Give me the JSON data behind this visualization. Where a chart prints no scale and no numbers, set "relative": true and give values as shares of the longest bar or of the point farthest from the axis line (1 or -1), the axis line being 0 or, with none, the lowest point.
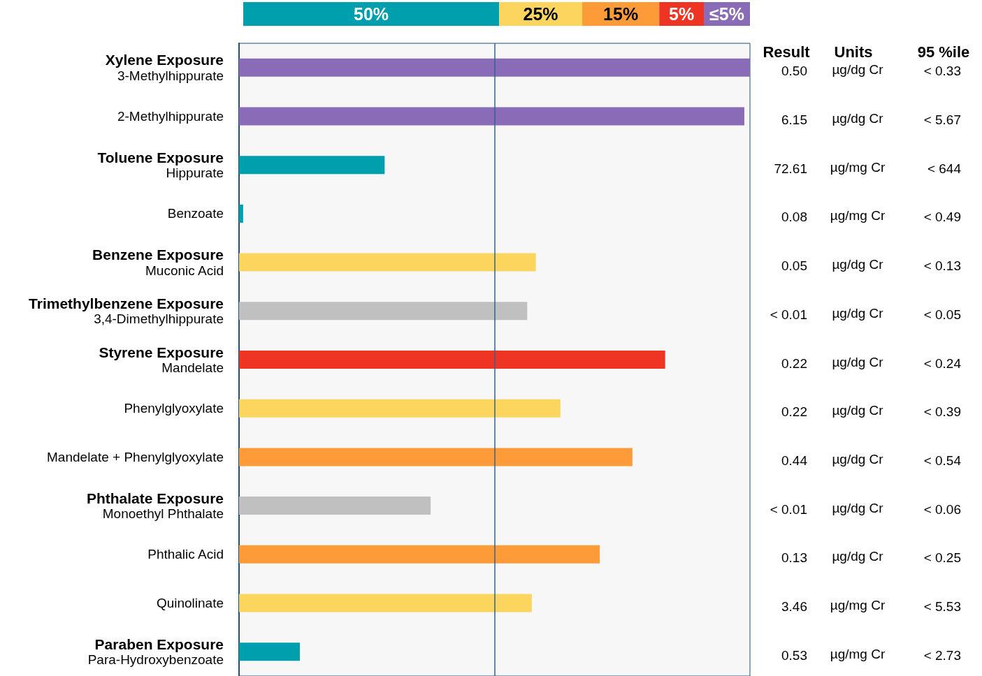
{
  "chart_data": {
    "type": "bar",
    "orientation": "horizontal",
    "stacked": true,
    "relative": true,
    "legend": "top",
    "categories": [
      "Xylene Exposure\n3-Methylhippurate",
      "2-Methylhippurate",
      "Toluene Exposure\nHippurate",
      "Benzoate",
      "Benzene Exposure\nMuconic Acid",
      "Trimethylbenzene Exposure\n3,4-Dimethylhippurate",
      "Styrene Exposure\nMandelate",
      "Phenylglyoxylate",
      "Mandelate + Phenylglyoxylate",
      "Phthalate Exposure\nMonoethyl Phthalate",
      "Phthalic Acid",
      "Quinolinate",
      "Paraben Exposure\nPara-Hydroxybenzoate"
    ],
    "series": [
      {
        "name": "50%",
        "color": "#009fad",
        "values": [
          null,
          null,
          0.285,
          0.008,
          null,
          null,
          null,
          null,
          null,
          null,
          null,
          null,
          0.119
        ]
      },
      {
        "name": "25%",
        "color": "#fcd55f",
        "values": [
          null,
          null,
          null,
          null,
          0.581,
          null,
          null,
          0.629,
          null,
          null,
          null,
          0.573,
          null
        ]
      },
      {
        "name": "15%",
        "color": "#fd9b38",
        "values": [
          null,
          null,
          null,
          null,
          null,
          null,
          null,
          null,
          0.77,
          null,
          0.706,
          null,
          null
        ]
      },
      {
        "name": "5%",
        "color": "#ee3524",
        "values": [
          null,
          null,
          null,
          null,
          null,
          null,
          0.834,
          null,
          null,
          null,
          null,
          null,
          null
        ]
      },
      {
        "name": "≤5%",
        "color": "#8a6bb8",
        "values": [
          1,
          0.989,
          null,
          null,
          null,
          null,
          null,
          null,
          null,
          null,
          null,
          null,
          null
        ]
      },
      {
        "color": "#c0c0c0",
        "values": [
          null,
          null,
          null,
          null,
          null,
          0.564,
          null,
          null,
          null,
          0.375,
          null,
          null,
          null
        ]
      }
    ],
    "ref_lines": [
      {
        "axis": "x",
        "value": 0.5,
        "color": "#2a6496"
      }
    ],
    "annotations": [
      "Result",
      "Units",
      "95 %ile",
      "0.50",
      "µg/dg Cr",
      "< 0.33",
      "6.15",
      "µg/dg Cr",
      "< 5.67",
      "72.61",
      "µg/mg Cr",
      "< 644",
      "0.08",
      "µg/mg Cr",
      "< 0.49",
      "0.05",
      "µg/dg Cr",
      "< 0.13",
      "< 0.01",
      "µg/dg Cr",
      "< 0.05",
      "0.22",
      "µg/dg Cr",
      "< 0.24",
      "0.22",
      "µg/dg Cr",
      "< 0.39",
      "0.44",
      "µg/dg Cr",
      "< 0.54",
      "< 0.01",
      "µg/dg Cr",
      "< 0.06",
      "0.13",
      "µg/dg Cr",
      "< 0.25",
      "3.46",
      "µg/mg Cr",
      "< 5.53",
      "0.53",
      "µg/mg Cr",
      "< 2.73"
    ]
  }
}
